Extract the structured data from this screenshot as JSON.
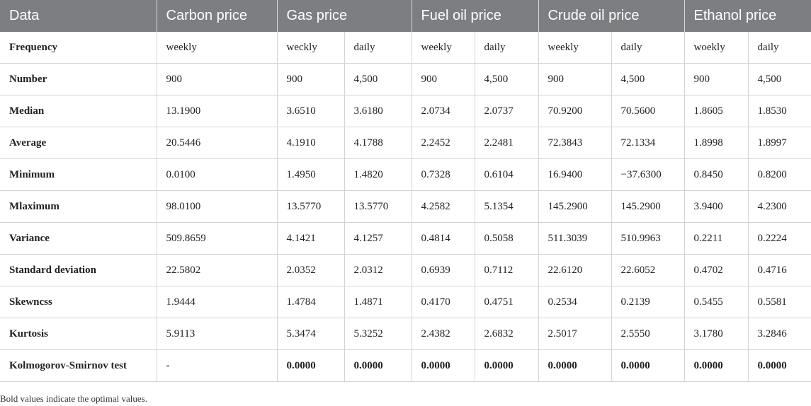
{
  "table": {
    "headers": [
      "Data",
      "Carbon price",
      "Gas price",
      "Fuel oil price",
      "Crude oil price",
      "Ethanol price"
    ],
    "rows": [
      {
        "label": "Frequency",
        "cells": [
          "weekly",
          "weckly",
          "daily",
          "weekly",
          "daily",
          "weekly",
          "daily",
          "woekly",
          "daily"
        ]
      },
      {
        "label": "Number",
        "cells": [
          "900",
          "900",
          "4,500",
          "900",
          "4,500",
          "900",
          "4,500",
          "900",
          "4,500"
        ]
      },
      {
        "label": "Median",
        "cells": [
          "13.1900",
          "3.6510",
          "3.6180",
          "2.0734",
          "2.0737",
          "70.9200",
          "70.5600",
          "1.8605",
          "1.8530"
        ]
      },
      {
        "label": "Average",
        "cells": [
          "20.5446",
          "4.1910",
          "4.1788",
          "2.2452",
          "2.2481",
          "72.3843",
          "72.1334",
          "1.8998",
          "1.8997"
        ]
      },
      {
        "label": "Minimum",
        "cells": [
          "0.0100",
          "1.4950",
          "1.4820",
          "0.7328",
          "0.6104",
          "16.9400",
          "−37.6300",
          "0.8450",
          "0.8200"
        ]
      },
      {
        "label": "Mlaximum",
        "cells": [
          "98.0100",
          "13.5770",
          "13.5770",
          "4.2582",
          "5.1354",
          "145.2900",
          "145.2900",
          "3.9400",
          "4.2300"
        ]
      },
      {
        "label": "Variance",
        "cells": [
          "509.8659",
          "4.1421",
          "4.1257",
          "0.4814",
          "0.5058",
          "511.3039",
          "510.9963",
          "0.2211",
          "0.2224"
        ]
      },
      {
        "label": "Standard deviation",
        "cells": [
          "22.5802",
          "2.0352",
          "2.0312",
          "0.6939",
          "0.7112",
          "22.6120",
          "22.6052",
          "0.4702",
          "0.4716"
        ]
      },
      {
        "label": "Skewncss",
        "cells": [
          "1.9444",
          "1.4784",
          "1.4871",
          "0.4170",
          "0.4751",
          "0.2534",
          "0.2139",
          "0.5455",
          "0.5581"
        ]
      },
      {
        "label": "Kurtosis",
        "cells": [
          "5.9113",
          "5.3474",
          "5.3252",
          "2.4382",
          "2.6832",
          "2.5017",
          "2.5550",
          "3.1780",
          "3.2846"
        ]
      },
      {
        "label": "Kolmogorov-Smirnov test",
        "cells": [
          "-",
          "0.0000",
          "0.0000",
          "0.0000",
          "0.0000",
          "0.0000",
          "0.0000",
          "0.0000",
          "0.0000"
        ],
        "bold": true
      }
    ]
  },
  "footnote": "Bold values indicate the optimal values.",
  "colors": {
    "header_bg": "#7d7e81",
    "header_text": "#ffffff",
    "grid": "#d4d4d4"
  }
}
